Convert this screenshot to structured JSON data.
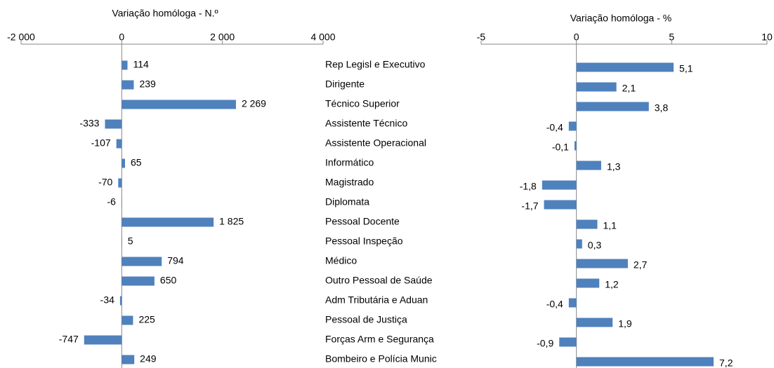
{
  "chart_data": [
    {
      "type": "bar",
      "title": "Variação homóloga - N.º",
      "categories": [
        "Rep Legisl e Executivo",
        "Dirigente",
        "Técnico Superior",
        "Assistente Técnico",
        "Assistente Operacional",
        "Informático",
        "Magistrado",
        "Diplomata",
        "Pessoal Docente",
        "Pessoal Inspeção",
        "Médico",
        "Outro Pessoal de Saúde",
        "Adm Tributária e Aduan",
        "Pessoal de Justiça",
        "Forças Arm e Segurança",
        "Bombeiro e Polícia Munic"
      ],
      "values": [
        114,
        239,
        2269,
        -333,
        -107,
        65,
        -70,
        -6,
        1825,
        5,
        794,
        650,
        -34,
        225,
        -747,
        249
      ],
      "value_labels": [
        "114",
        "239",
        "2 269",
        "-333",
        "-107",
        "65",
        "-70",
        "-6",
        "1 825",
        "5",
        "794",
        "650",
        "-34",
        "225",
        "-747",
        "249"
      ],
      "color": "#4f81bd",
      "xlim": [
        -2000,
        4000
      ],
      "xticks": [
        {
          "value": -2000,
          "label": "-2 000"
        },
        0,
        {
          "value": 2000,
          "label": "2 000"
        },
        {
          "value": 4000,
          "label": "4 000"
        }
      ]
    },
    {
      "type": "bar",
      "title": "Variação homóloga - %",
      "values": [
        5.1,
        2.1,
        3.8,
        -0.4,
        -0.1,
        1.3,
        -1.8,
        -1.7,
        1.1,
        0.3,
        2.7,
        1.2,
        -0.4,
        1.9,
        -0.9,
        7.2
      ],
      "value_labels": [
        "5,1",
        "2,1",
        "3,8",
        "-0,4",
        "-0,1",
        "1,3",
        "-1,8",
        "-1,7",
        "1,1",
        "0,3",
        "2,7",
        "1,2",
        "-0,4",
        "1,9",
        "-0,9",
        "7,2"
      ],
      "color": "#4f81bd",
      "xlim": [
        -5,
        10
      ],
      "xticks": [
        -5,
        0,
        5,
        10
      ]
    }
  ]
}
